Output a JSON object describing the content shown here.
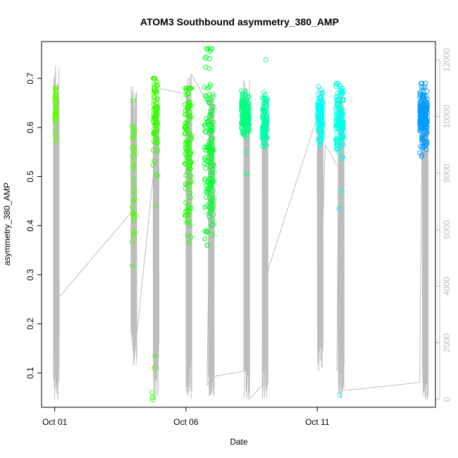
{
  "chart_data": {
    "type": "scatter",
    "title": "ATOM3 Southbound asymmetry_380_AMP",
    "xlabel": "Date",
    "ylabel": "asymmetry_380_AMP",
    "x_tick_labels": [
      "Oct 01",
      "Oct 06",
      "Oct 11"
    ],
    "x_tick_days": [
      1,
      6,
      11
    ],
    "xlim": [
      0.5,
      15.5
    ],
    "ylim": [
      0.03,
      0.775
    ],
    "y_ticks": [
      0.1,
      0.2,
      0.3,
      0.4,
      0.5,
      0.6,
      0.7
    ],
    "y2lim": [
      -280,
      12650
    ],
    "y2_ticks": [
      0,
      2000,
      4000,
      6000,
      8000,
      10000,
      12000
    ],
    "grid": false,
    "legend": "none",
    "axis_color": "#000000",
    "secondary_color": "#bdbdbd",
    "series": [
      {
        "color": "#66ff00",
        "day_start": 1.0,
        "day_end": 1.06,
        "y_min": 0.545,
        "y_max": 0.68,
        "y_mean": 0.64,
        "y_sd": 0.03,
        "points": 45,
        "extra_points": []
      },
      {
        "color": "#4cff00",
        "day_start": 3.95,
        "day_end": 4.05,
        "y_min": 0.31,
        "y_max": 0.655,
        "y_mean": 0.5,
        "y_sd": 0.08,
        "points": 38,
        "extra_points": []
      },
      {
        "color": "#38ff00",
        "day_start": 4.75,
        "day_end": 4.92,
        "y_min": 0.38,
        "y_max": 0.7,
        "y_mean": 0.63,
        "y_sd": 0.05,
        "points": 90,
        "extra_points": [
          [
            4.72,
            0.045
          ],
          [
            4.73,
            0.05
          ],
          [
            4.71,
            0.06
          ],
          [
            4.8,
            0.11
          ],
          [
            4.82,
            0.135
          ],
          [
            4.84,
            0.44
          ]
        ]
      },
      {
        "color": "#1fff00",
        "day_start": 5.95,
        "day_end": 6.2,
        "y_min": 0.335,
        "y_max": 0.68,
        "y_mean": 0.56,
        "y_sd": 0.09,
        "points": 120,
        "extra_points": []
      },
      {
        "color": "#00ff2a",
        "day_start": 6.7,
        "day_end": 7.05,
        "y_min": 0.36,
        "y_max": 0.76,
        "y_mean": 0.53,
        "y_sd": 0.1,
        "points": 150,
        "extra_points": [
          [
            6.92,
            0.755
          ],
          [
            6.95,
            0.76
          ],
          [
            6.88,
            0.72
          ]
        ]
      },
      {
        "color": "#00ff7f",
        "day_start": 8.1,
        "day_end": 8.4,
        "y_min": 0.505,
        "y_max": 0.69,
        "y_mean": 0.625,
        "y_sd": 0.02,
        "points": 160,
        "extra_points": [
          [
            8.3,
            0.505
          ],
          [
            8.28,
            0.55
          ]
        ]
      },
      {
        "color": "#00ffa8",
        "day_start": 8.9,
        "day_end": 9.1,
        "y_min": 0.56,
        "y_max": 0.675,
        "y_mean": 0.615,
        "y_sd": 0.025,
        "points": 100,
        "extra_points": [
          [
            9.04,
            0.738
          ]
        ]
      },
      {
        "color": "#00fff0",
        "day_start": 11.0,
        "day_end": 11.2,
        "y_min": 0.52,
        "y_max": 0.69,
        "y_mean": 0.625,
        "y_sd": 0.03,
        "points": 110,
        "extra_points": []
      },
      {
        "color": "#00ffe6",
        "day_start": 11.7,
        "day_end": 12.0,
        "y_min": 0.43,
        "y_max": 0.69,
        "y_mean": 0.62,
        "y_sd": 0.04,
        "points": 130,
        "extra_points": [
          [
            11.85,
            0.055
          ],
          [
            11.82,
            0.435
          ],
          [
            11.9,
            0.47
          ]
        ]
      },
      {
        "color": "#009bff",
        "day_start": 14.9,
        "day_end": 15.2,
        "y_min": 0.525,
        "y_max": 0.69,
        "y_mean": 0.62,
        "y_sd": 0.03,
        "points": 180,
        "extra_points": []
      }
    ],
    "secondary_series_y2": [
      {
        "day": 1.0,
        "spike_top": 11800,
        "floor": 0,
        "baseline": 2800
      },
      {
        "day": 3.95,
        "spike_top": 11100,
        "floor": 1200,
        "baseline": 6300
      },
      {
        "day": 4.8,
        "spike_top": 10800,
        "floor": 0,
        "baseline": 7500
      },
      {
        "day": 6.05,
        "spike_top": 11500,
        "floor": 0,
        "baseline": 400
      },
      {
        "day": 6.9,
        "spike_top": 10800,
        "floor": 0,
        "baseline": 600
      },
      {
        "day": 8.25,
        "spike_top": 11300,
        "floor": 0,
        "baseline": 3800
      },
      {
        "day": 8.95,
        "spike_top": 10600,
        "floor": 0,
        "baseline": 4300
      },
      {
        "day": 11.05,
        "spike_top": 11100,
        "floor": 1000,
        "baseline": 8500
      },
      {
        "day": 11.85,
        "spike_top": 11000,
        "floor": 0,
        "baseline": 8300
      },
      {
        "day": 15.05,
        "spike_top": 10700,
        "floor": 0,
        "baseline": 600
      }
    ],
    "secondary_path_y2": [
      [
        0.98,
        3200
      ],
      [
        1.0,
        0
      ],
      [
        1.03,
        11800
      ],
      [
        1.06,
        3500
      ],
      [
        4.0,
        6700
      ],
      [
        4.0,
        1200
      ],
      [
        4.75,
        7900
      ],
      [
        4.78,
        0
      ],
      [
        4.95,
        11000
      ],
      [
        6.0,
        10800
      ],
      [
        6.1,
        300
      ],
      [
        6.2,
        11500
      ],
      [
        6.95,
        10300
      ],
      [
        6.8,
        500
      ],
      [
        7.0,
        800
      ],
      [
        8.2,
        1000
      ],
      [
        8.2,
        11300
      ],
      [
        8.35,
        10500
      ],
      [
        8.4,
        0
      ],
      [
        8.9,
        500
      ],
      [
        9.0,
        10800
      ],
      [
        9.1,
        4500
      ],
      [
        11.0,
        10000
      ],
      [
        11.05,
        1000
      ],
      [
        11.3,
        9000
      ],
      [
        11.8,
        8200
      ],
      [
        11.75,
        1000
      ],
      [
        11.9,
        11000
      ],
      [
        11.95,
        300
      ],
      [
        14.9,
        600
      ],
      [
        15.0,
        10400
      ],
      [
        15.2,
        0
      ]
    ]
  }
}
